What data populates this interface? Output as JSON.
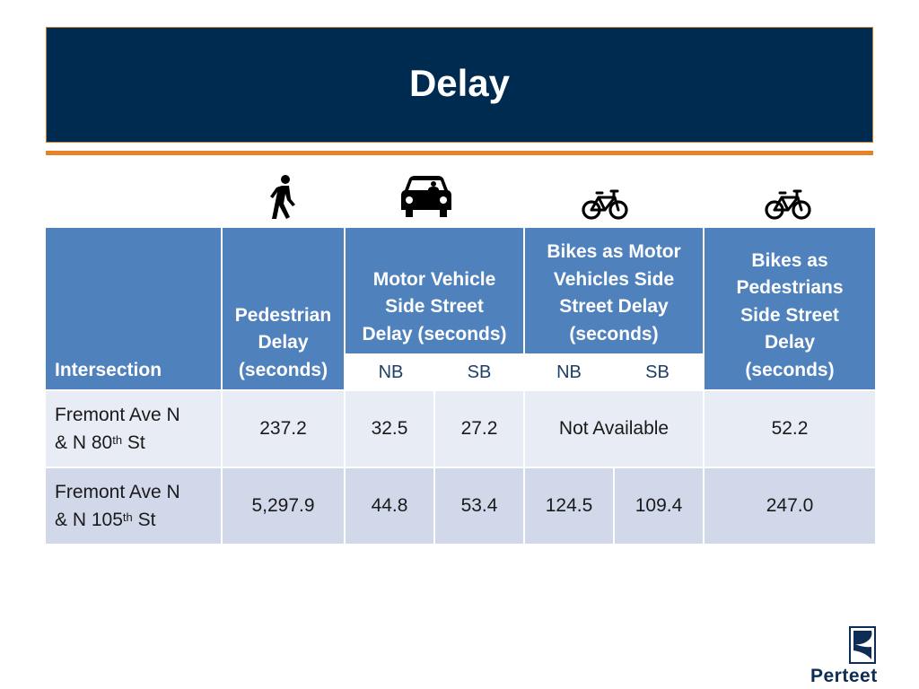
{
  "slide": {
    "title": "Delay",
    "accent_color": "#e8822a",
    "banner_color": "#002b50"
  },
  "icons": {
    "pedestrian": "pedestrian-icon",
    "car": "car-icon",
    "bike_motor": "bicycle-icon",
    "bike_ped": "bicycle-icon"
  },
  "table": {
    "headers": {
      "intersection": "Intersection",
      "pedestrian": [
        "Pedestrian",
        "Delay",
        "(seconds)"
      ],
      "motor_vehicle": [
        "Motor Vehicle",
        "Side Street",
        "Delay (seconds)"
      ],
      "bikes_motor": [
        "Bikes as Motor",
        "Vehicles Side",
        "Street Delay",
        "(seconds)"
      ],
      "bikes_ped": [
        "Bikes as",
        "Pedestrians",
        "Side Street",
        "Delay",
        "(seconds)"
      ],
      "nb": "NB",
      "sb": "SB"
    },
    "rows": [
      {
        "intersection_line1": "Fremont Ave N",
        "intersection_prefix": "& N 80",
        "intersection_sup": "th",
        "intersection_suffix": " St",
        "pedestrian": "237.2",
        "mv_nb": "32.5",
        "mv_sb": "27.2",
        "bike_motor": "Not Available",
        "bike_ped": "52.2"
      },
      {
        "intersection_line1": "Fremont Ave N",
        "intersection_prefix": "& N 105",
        "intersection_sup": "th",
        "intersection_suffix": " St",
        "pedestrian": "5,297.9",
        "mv_nb": "44.8",
        "mv_sb": "53.4",
        "bike_nb": "124.5",
        "bike_sb": "109.4",
        "bike_ped": "247.0"
      }
    ]
  },
  "logo": {
    "name": "Perteet"
  }
}
